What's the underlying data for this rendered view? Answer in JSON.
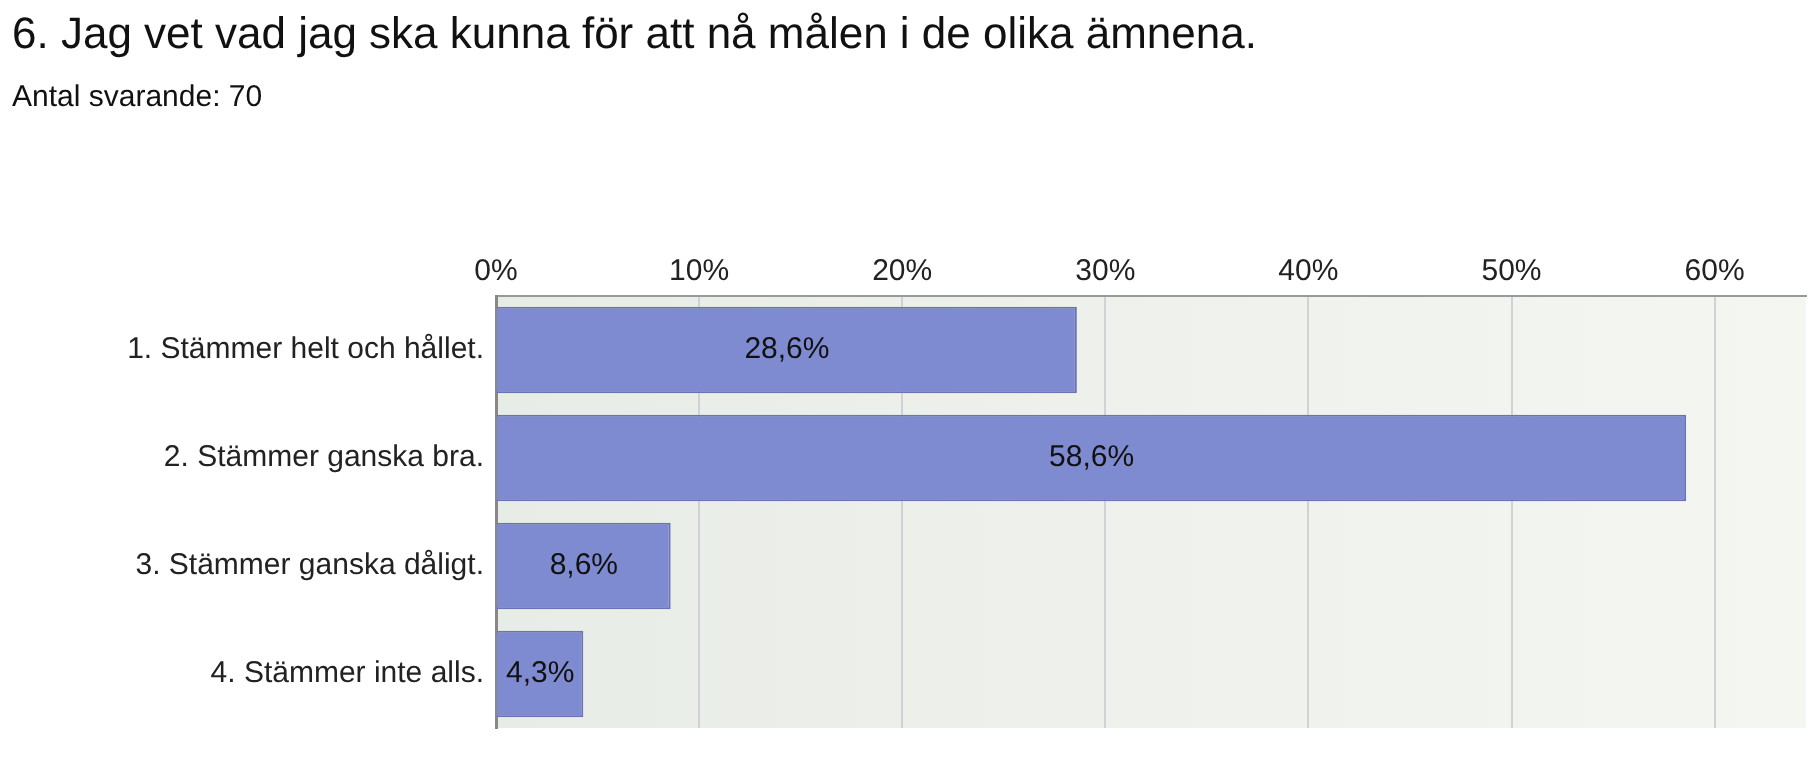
{
  "chart_data": {
    "type": "bar",
    "orientation": "horizontal",
    "title": "6. Jag vet vad jag ska kunna för att nå målen i de olika ämnena.",
    "subtitle": "Antal svarande: 70",
    "categories": [
      "1. Stämmer helt och hållet.",
      "2. Stämmer ganska bra.",
      "3. Stämmer ganska dåligt.",
      "4. Stämmer inte alls."
    ],
    "values": [
      28.6,
      58.6,
      8.6,
      4.3
    ],
    "value_labels": [
      "28,6%",
      "58,6%",
      "8,6%",
      "4,3%"
    ],
    "color": "#7f8bd0",
    "xlim": [
      0,
      64.5
    ],
    "xticks": [
      {
        "value": 0,
        "label": "0%"
      },
      {
        "value": 10,
        "label": "10%"
      },
      {
        "value": 20,
        "label": "20%"
      },
      {
        "value": 30,
        "label": "30%"
      },
      {
        "value": 40,
        "label": "40%"
      },
      {
        "value": 50,
        "label": "50%"
      },
      {
        "value": 60,
        "label": "60%"
      }
    ],
    "grid": "x",
    "legend": false
  }
}
